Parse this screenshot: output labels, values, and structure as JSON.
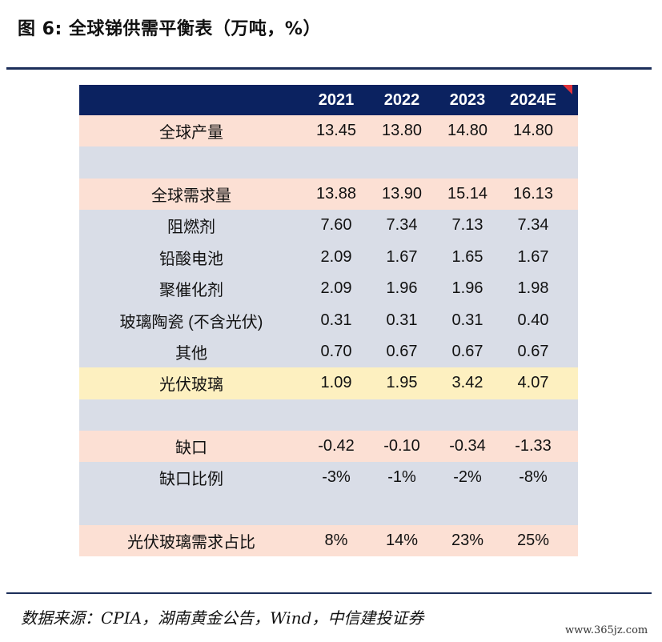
{
  "title": "图 6:  全球锑供需平衡表（万吨，%）",
  "header": {
    "label": "",
    "years": [
      "2021",
      "2022",
      "2023",
      "2024E"
    ]
  },
  "rows": [
    {
      "label": "全球产量",
      "values": [
        "13.45",
        "13.80",
        "14.80",
        "14.80"
      ],
      "style": "pink"
    },
    {
      "label": "",
      "values": [
        "",
        "",
        "",
        ""
      ],
      "style": "gray"
    },
    {
      "label": "全球需求量",
      "values": [
        "13.88",
        "13.90",
        "15.14",
        "16.13"
      ],
      "style": "pink"
    },
    {
      "label": "阻燃剂",
      "values": [
        "7.60",
        "7.34",
        "7.13",
        "7.34"
      ],
      "style": "gray"
    },
    {
      "label": "铅酸电池",
      "values": [
        "2.09",
        "1.67",
        "1.65",
        "1.67"
      ],
      "style": "gray"
    },
    {
      "label": "聚催化剂",
      "values": [
        "2.09",
        "1.96",
        "1.96",
        "1.98"
      ],
      "style": "gray"
    },
    {
      "label": "玻璃陶瓷 (不含光伏)",
      "values": [
        "0.31",
        "0.31",
        "0.31",
        "0.40"
      ],
      "style": "gray"
    },
    {
      "label": "其他",
      "values": [
        "0.70",
        "0.67",
        "0.67",
        "0.67"
      ],
      "style": "gray"
    },
    {
      "label": "光伏玻璃",
      "values": [
        "1.09",
        "1.95",
        "3.42",
        "4.07"
      ],
      "style": "yel"
    },
    {
      "label": "",
      "values": [
        "",
        "",
        "",
        ""
      ],
      "style": "gray"
    },
    {
      "label": "缺口",
      "values": [
        "-0.42",
        "-0.10",
        "-0.34",
        "-1.33"
      ],
      "style": "pink"
    },
    {
      "label": "缺口比例",
      "values": [
        "-3%",
        "-1%",
        "-2%",
        "-8%"
      ],
      "style": "gray"
    },
    {
      "label": "",
      "values": [
        "",
        "",
        "",
        ""
      ],
      "style": "gray"
    },
    {
      "label": "光伏玻璃需求占比",
      "values": [
        "8%",
        "14%",
        "23%",
        "25%"
      ],
      "style": "pink"
    }
  ],
  "source": "数据来源：CPIA，湖南黄金公告，Wind，中信建投证券",
  "watermark": "www.365jz.com",
  "colors": {
    "header": "#0b2260",
    "pink": "#fce0d4",
    "gray": "#d9dde7",
    "yellow": "#fdf0c0",
    "rule": "#1c2e5a",
    "corner_mark": "#e0323a"
  }
}
